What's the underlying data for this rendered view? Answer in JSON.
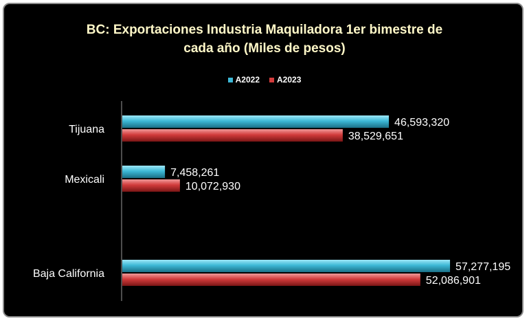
{
  "chart_data": {
    "type": "bar",
    "orientation": "horizontal",
    "title_lines": [
      "BC: Exportaciones Industria Maquiladora 1er bimestre de",
      "cada año (Miles de pesos)"
    ],
    "categories": [
      "Tijuana",
      "Mexicali",
      "Baja California"
    ],
    "series": [
      {
        "name": "A2022",
        "color": "#3db8d6",
        "values": [
          46593320,
          7458261,
          57277195
        ],
        "labels": [
          "46,593,320",
          "7,458,261",
          "57,277,195"
        ]
      },
      {
        "name": "A2023",
        "color": "#d23c3c",
        "values": [
          38529651,
          10072930,
          52086901
        ],
        "labels": [
          "38,529,651",
          "10,072,930",
          "52,086,901"
        ]
      }
    ],
    "xlim": [
      0,
      70000000
    ],
    "legend_position": "top",
    "grid": false
  }
}
